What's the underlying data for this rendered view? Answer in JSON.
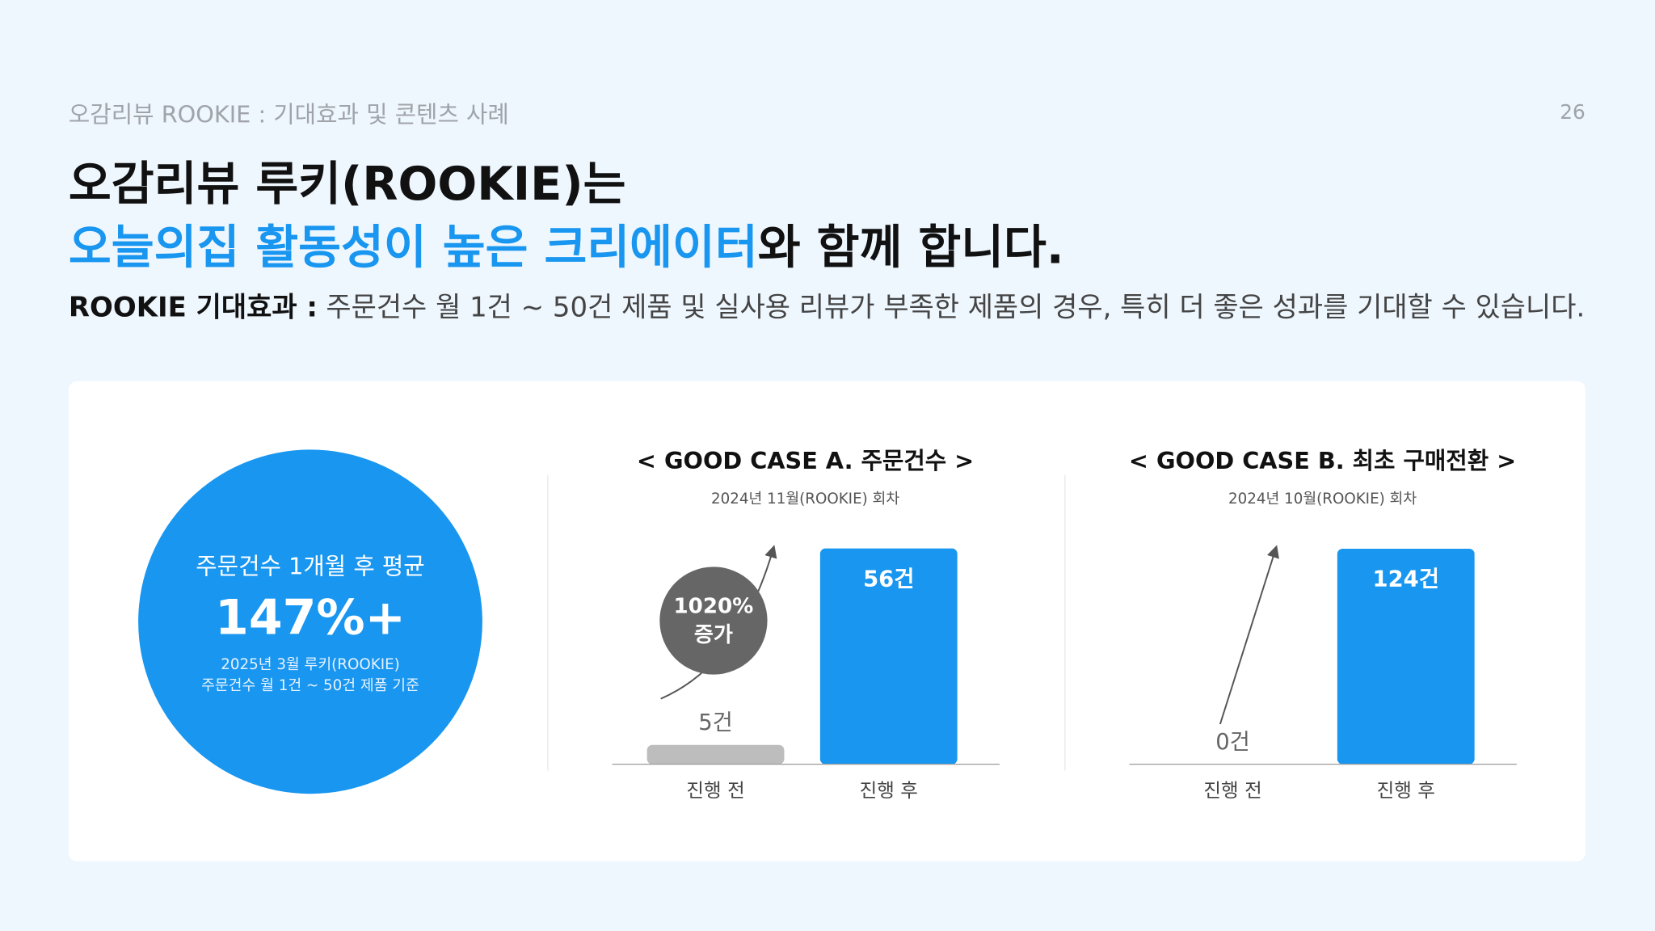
{
  "header": {
    "breadcrumb": "오감리뷰 ROOKIE : 기대효과 및 콘텐츠 사례",
    "page_number": "26"
  },
  "headline": {
    "line1": "오감리뷰 루키(ROOKIE)는",
    "line2_highlight": "오늘의집 활동성이 높은 크리에이터",
    "line2_rest": "와 함께 합니다."
  },
  "summary": {
    "label": "ROOKIE 기대효과 :",
    "text": "주문건수 월 1건 ~ 50건 제품 및 실사용 리뷰가 부족한 제품의 경우, 특히 더 좋은 성과를 기대할 수 있습니다."
  },
  "highlight": {
    "caption": "주문건수 1개월 후 평균",
    "value": "147%+",
    "note_lines": [
      "2025년 3월 루키(ROOKIE)",
      "주문건수 월 1건 ~ 50건 제품 기준"
    ]
  },
  "chart_data": [
    {
      "type": "bar",
      "title": "< GOOD CASE A. 주문건수 >",
      "subtitle": "2024년 11월(ROOKIE) 회차",
      "categories": [
        "진행 전",
        "진행 후"
      ],
      "values": [
        5,
        56
      ],
      "value_labels": [
        "5건",
        "56건"
      ],
      "colors": [
        "#bdbdbd",
        "#1896f0"
      ],
      "ylim": [
        0,
        60
      ],
      "annotation": [
        "1020%",
        "증가"
      ]
    },
    {
      "type": "bar",
      "title": "< GOOD CASE B. 최초 구매전환 >",
      "subtitle": "2024년 10월(ROOKIE) 회차",
      "categories": [
        "진행 전",
        "진행 후"
      ],
      "values": [
        0,
        124
      ],
      "value_labels": [
        "0건",
        "124건"
      ],
      "colors": [
        "#bdbdbd",
        "#1896f0"
      ],
      "ylim": [
        0,
        133
      ]
    }
  ]
}
